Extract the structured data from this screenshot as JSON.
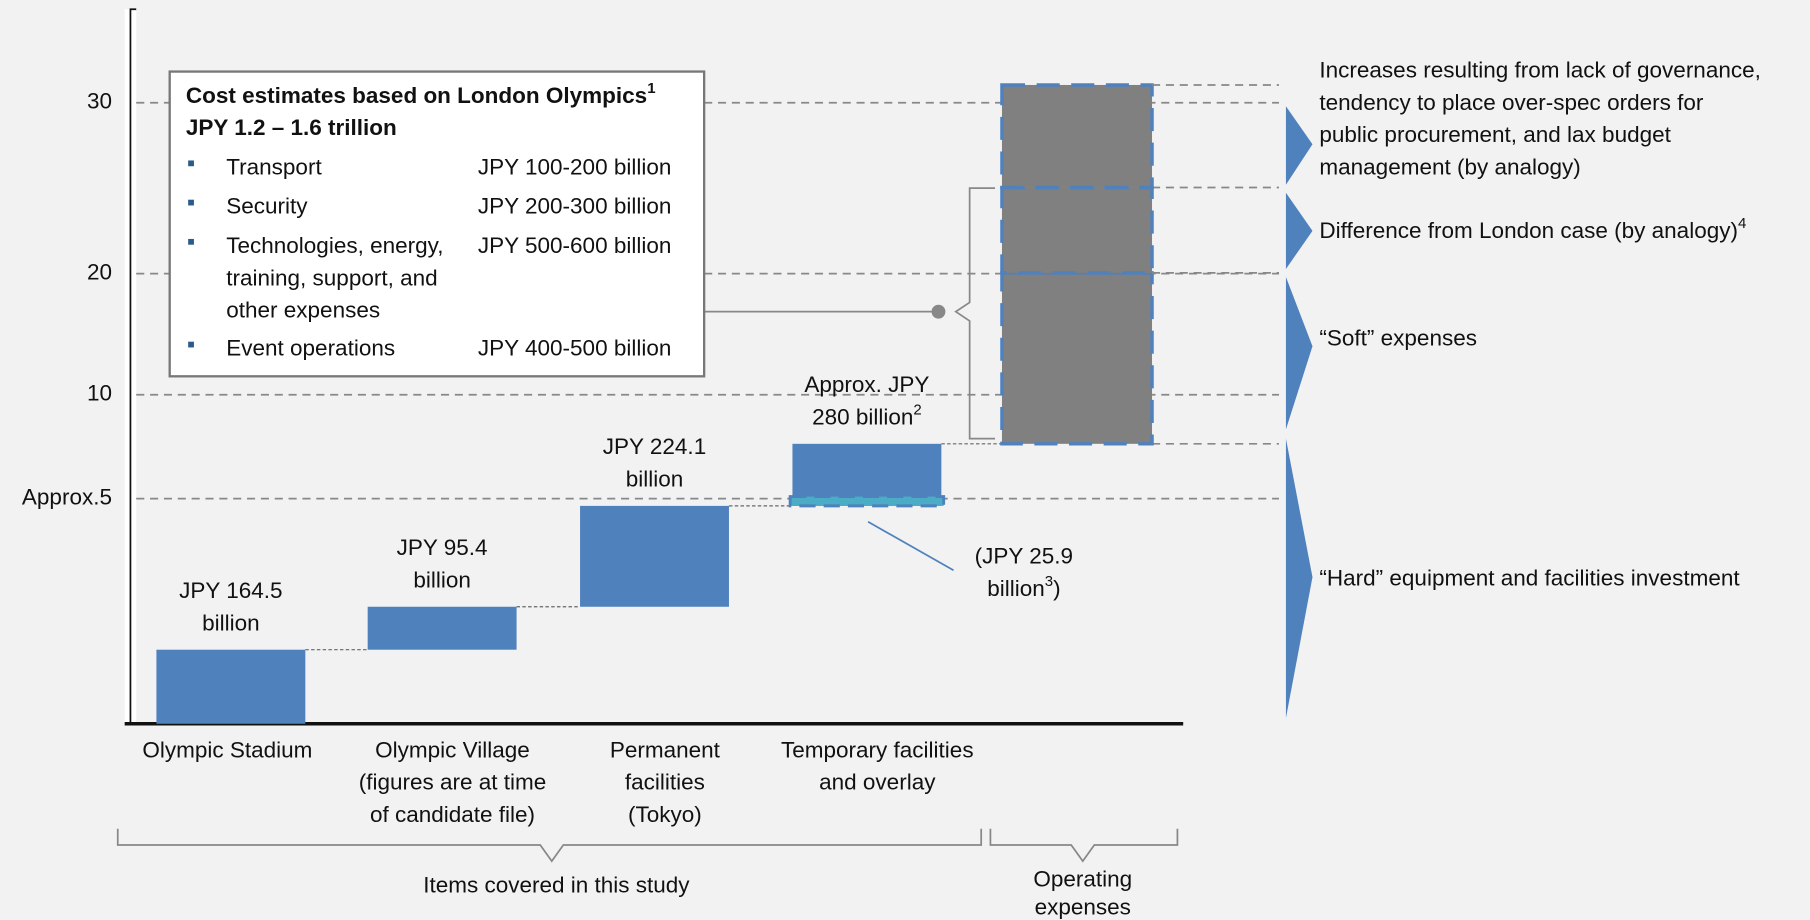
{
  "chart_data": {
    "type": "waterfall",
    "ylim": [
      0,
      32
    ],
    "yticks": [
      {
        "value": 5,
        "label": "Approx.5"
      },
      10,
      20,
      30
    ],
    "grid": true,
    "color": "#4f81bd",
    "categories": [
      [
        "Olympic Stadium"
      ],
      [
        "Olympic Village",
        "(figures are at time",
        "of candidate file)"
      ],
      [
        "Permanent",
        "facilities",
        "(Tokyo)"
      ],
      [
        "Temporary facilities",
        "and overlay"
      ]
    ],
    "values": [
      1.645,
      0.954,
      2.241,
      2.8
    ],
    "value_labels": [
      {
        "lines": [
          "JPY 164.5",
          "billion"
        ]
      },
      {
        "lines": [
          "JPY 95.4",
          "billion"
        ]
      },
      {
        "lines": [
          "JPY 224.1",
          "billion"
        ]
      },
      {
        "lines": [
          "Approx. JPY",
          "280 billion"
        ],
        "note": "2"
      }
    ],
    "highlight": {
      "value": 0.259,
      "color": "#4bacc6",
      "lines": [
        "(JPY 25.9",
        "billion"
      ],
      "note": "3",
      "suffix": ")"
    },
    "operating": {
      "color": "#808080",
      "values": [
        12.4,
        5,
        6
      ]
    },
    "right_labels": [
      {
        "lines": [
          "Increases resulting from lack of governance,",
          "tendency to place over-spec orders for",
          "public procurement, and lax budget",
          "management (by analogy)"
        ]
      },
      {
        "lines": [
          "Difference from London case (by analogy)"
        ],
        "note": "4"
      },
      {
        "lines": [
          "“Soft” expenses"
        ]
      },
      {
        "lines": [
          "“Hard” equipment and facilities investment"
        ]
      }
    ],
    "groups": [
      {
        "lines": [
          "Items covered in this study"
        ]
      },
      {
        "lines": [
          "Operating",
          "expenses"
        ]
      }
    ],
    "info_box": {
      "title": "Cost estimates based on London Olympics",
      "note": "1",
      "subtitle": "JPY 1.2 – 1.6 trillion",
      "items": [
        {
          "lines": [
            "Transport"
          ],
          "amount": "JPY 100-200 billion"
        },
        {
          "lines": [
            "Security"
          ],
          "amount": "JPY 200-300 billion"
        },
        {
          "lines": [
            "Technologies, energy,",
            "training, support, and",
            "other expenses"
          ],
          "amount": "JPY 500-600 billion"
        },
        {
          "lines": [
            "Event operations"
          ],
          "amount": "JPY 400-500 billion"
        }
      ]
    }
  }
}
